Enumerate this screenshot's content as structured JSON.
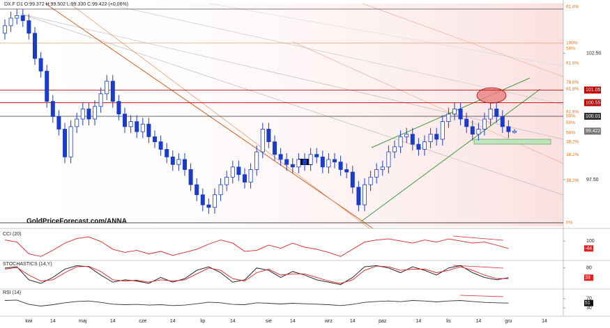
{
  "chart_data": [
    {
      "type": "candlestick",
      "title": "DX.F D1 O:99.372 H:99.502 L:99.330 C:99.422 (+0.06%)",
      "watermark": "GoldPriceForecast.com/ANNA",
      "categories": [
        null,
        null,
        null,
        null,
        "kwi",
        null,
        null,
        null,
        "14",
        null,
        null,
        null,
        null,
        "maj",
        null,
        null,
        null,
        null,
        "14",
        null,
        null,
        null,
        null,
        "cze",
        null,
        null,
        null,
        null,
        "14",
        null,
        null,
        null,
        null,
        "lip",
        null,
        null,
        null,
        null,
        "14",
        null,
        null,
        null,
        null,
        null,
        "sie",
        null,
        null,
        null,
        "14",
        null,
        null,
        null,
        null,
        null,
        "wrz",
        null,
        null,
        null,
        "14",
        null,
        null,
        null,
        null,
        "paz",
        null,
        null,
        null,
        null,
        null,
        "14",
        null,
        null,
        null,
        null,
        "lis",
        null,
        null,
        null,
        null,
        "14",
        null,
        null,
        null,
        null,
        "gru",
        null,
        null,
        null,
        null,
        null,
        "14"
      ],
      "open": [
        103.3,
        103.6,
        103.9,
        104.0,
        103.8,
        103.3,
        102.3,
        101.8,
        100.6,
        100.0,
        99.5,
        98.4,
        99.6,
        99.9,
        100.3,
        99.9,
        100.4,
        100.9,
        101.4,
        100.6,
        100.1,
        99.6,
        99.8,
        99.4,
        99.7,
        99.2,
        99.0,
        98.7,
        98.4,
        98.1,
        98.3,
        97.9,
        97.3,
        96.9,
        96.5,
        96.4,
        96.9,
        97.3,
        97.6,
        98.0,
        97.7,
        97.4,
        97.9,
        98.6,
        99.5,
        99.0,
        98.5,
        98.3,
        98.1,
        98.0,
        98.3,
        98.1,
        98.5,
        98.4,
        98.0,
        98.3,
        98.2,
        97.9,
        97.8,
        97.2,
        96.5,
        97.3,
        97.6,
        97.9,
        98.0,
        98.6,
        98.8,
        99.2,
        99.3,
        98.9,
        98.7,
        99.0,
        99.3,
        99.1,
        99.8,
        100.1,
        100.3,
        99.9,
        99.6,
        99.3,
        99.5,
        99.9,
        100.3,
        100.0,
        99.6,
        99.372,
        null,
        null,
        null,
        null,
        null
      ],
      "high": [
        103.85,
        104.15,
        104.25,
        104.25,
        104.05,
        103.55,
        102.55,
        102.05,
        100.85,
        100.25,
        99.75,
        99.85,
        100.15,
        100.55,
        100.55,
        100.65,
        101.15,
        101.65,
        101.65,
        100.85,
        100.35,
        100.05,
        100.05,
        99.95,
        99.95,
        99.45,
        99.25,
        98.95,
        98.65,
        98.55,
        98.55,
        98.15,
        97.55,
        97.15,
        96.75,
        97.15,
        97.55,
        97.85,
        98.25,
        98.25,
        97.95,
        98.15,
        98.85,
        99.75,
        99.75,
        99.25,
        98.75,
        98.55,
        98.35,
        98.55,
        98.55,
        98.75,
        98.75,
        98.65,
        98.55,
        98.55,
        98.45,
        98.15,
        98.05,
        97.45,
        97.55,
        97.85,
        98.15,
        98.25,
        98.85,
        99.05,
        99.45,
        99.55,
        99.55,
        99.15,
        99.25,
        99.55,
        99.55,
        100.05,
        100.35,
        100.55,
        100.55,
        100.15,
        99.85,
        99.75,
        100.15,
        100.55,
        100.55,
        100.25,
        99.85,
        99.502,
        null,
        null,
        null,
        null,
        null
      ],
      "low": [
        103.05,
        103.35,
        103.65,
        103.55,
        103.05,
        102.05,
        101.55,
        100.35,
        99.75,
        99.25,
        98.15,
        98.15,
        99.35,
        99.65,
        99.65,
        99.65,
        100.15,
        100.65,
        100.35,
        99.85,
        99.35,
        99.35,
        99.15,
        99.15,
        98.95,
        98.75,
        98.45,
        98.15,
        97.85,
        97.85,
        97.65,
        97.05,
        96.65,
        96.25,
        96.15,
        96.15,
        96.65,
        97.05,
        97.35,
        97.45,
        97.15,
        97.15,
        97.65,
        98.35,
        98.75,
        98.25,
        98.05,
        97.85,
        97.75,
        97.75,
        97.85,
        97.85,
        98.15,
        97.75,
        97.75,
        97.95,
        97.65,
        97.55,
        96.95,
        96.25,
        96.25,
        97.05,
        97.35,
        97.65,
        97.75,
        98.35,
        98.55,
        98.95,
        98.65,
        98.45,
        98.45,
        98.75,
        98.85,
        98.85,
        99.55,
        99.85,
        99.65,
        99.35,
        99.05,
        99.05,
        99.25,
        99.65,
        99.75,
        99.35,
        99.15,
        99.33,
        null,
        null,
        null,
        null,
        null
      ],
      "close": [
        103.6,
        103.9,
        104.0,
        103.8,
        103.3,
        102.3,
        101.8,
        100.6,
        100.0,
        99.5,
        98.4,
        99.6,
        99.9,
        100.3,
        99.9,
        100.4,
        100.9,
        101.4,
        100.6,
        100.1,
        99.6,
        99.8,
        99.4,
        99.7,
        99.2,
        99.0,
        98.7,
        98.4,
        98.1,
        98.3,
        97.9,
        97.3,
        96.9,
        96.5,
        96.4,
        96.9,
        97.3,
        97.6,
        98.0,
        97.7,
        97.4,
        97.9,
        98.6,
        99.5,
        99.0,
        98.5,
        98.3,
        98.1,
        98.0,
        98.3,
        98.1,
        98.5,
        98.4,
        98.0,
        98.3,
        98.2,
        97.9,
        97.8,
        97.2,
        96.5,
        97.3,
        97.6,
        97.9,
        98.0,
        98.6,
        98.8,
        99.2,
        99.3,
        98.9,
        98.7,
        99.0,
        99.3,
        99.1,
        99.8,
        100.1,
        100.3,
        99.9,
        99.6,
        99.3,
        99.5,
        99.9,
        100.3,
        100.0,
        99.6,
        99.4,
        99.422,
        null,
        null,
        null,
        null,
        null
      ],
      "color": "#1a3cc8",
      "last_color": "#777777",
      "ylim": [
        95.65,
        104.48
      ],
      "yticks": [
        {
          "value": 97.5,
          "label": "97.50"
        },
        {
          "value": 102.5,
          "label": "102.50"
        }
      ],
      "levels": [
        {
          "value": 104.26,
          "color": "#555555"
        },
        {
          "value": 102.91,
          "color": "#e8a070"
        },
        {
          "value": 101.05,
          "color": "#c00000",
          "tag": true
        },
        {
          "value": 100.55,
          "color": "#c00000",
          "tag": true
        },
        {
          "value": 100.01,
          "color": "#333333",
          "tag": true
        },
        {
          "value": 95.79,
          "color": "#333333"
        }
      ],
      "fib_labels": [
        {
          "value": 104.35,
          "label": "61.8%"
        },
        {
          "value": 102.91,
          "label": "100%"
        },
        {
          "value": 102.69,
          "label": "50%"
        },
        {
          "value": 102.11,
          "label": "61.8%"
        },
        {
          "value": 101.36,
          "label": "78.6%"
        },
        {
          "value": 101.09,
          "label": "61.8%"
        },
        {
          "value": 100.18,
          "label": "61.8%"
        },
        {
          "value": 100.01,
          "label": "50%"
        },
        {
          "value": 99.76,
          "label": "50%"
        },
        {
          "value": 99.35,
          "label": "50%"
        },
        {
          "value": 98.99,
          "label": "38.2%"
        },
        {
          "value": 98.49,
          "label": "38.2%"
        },
        {
          "value": 97.47,
          "label": "38.2%"
        },
        {
          "value": 95.79,
          "label": "0%"
        }
      ]
    },
    {
      "type": "line",
      "title": "CCI (20)",
      "color": "#e02020",
      "last_color": "#e02020",
      "values": [
        120,
        80,
        -150,
        -200,
        -80,
        60,
        150,
        180,
        90,
        -60,
        -120,
        -80,
        -150,
        -100,
        -180,
        -120,
        -60,
        40,
        120,
        60,
        -100,
        -80,
        20,
        -40,
        60,
        -20,
        -60,
        -120,
        -200,
        -60,
        80,
        120,
        140,
        100,
        60,
        120,
        80,
        140,
        100,
        60,
        80,
        20,
        -44
      ],
      "ylim": [
        -250,
        250
      ],
      "yticks": [
        100
      ]
    },
    {
      "type": "line",
      "title": "STOCHASTICS (14,Y)",
      "last_color": "#e02020",
      "series": [
        {
          "color": "#111111",
          "values": [
            80,
            85,
            30,
            15,
            40,
            75,
            90,
            85,
            50,
            20,
            30,
            25,
            15,
            40,
            20,
            35,
            70,
            85,
            60,
            20,
            30,
            80,
            70,
            40,
            65,
            50,
            30,
            20,
            10,
            40,
            85,
            90,
            80,
            60,
            85,
            70,
            50,
            80,
            90,
            60,
            40,
            30,
            39
          ]
        },
        {
          "color": "#e02020",
          "values": [
            75,
            82,
            50,
            25,
            30,
            60,
            85,
            87,
            65,
            30,
            25,
            28,
            20,
            30,
            25,
            30,
            55,
            80,
            70,
            35,
            25,
            60,
            75,
            50,
            55,
            55,
            40,
            25,
            15,
            30,
            70,
            88,
            85,
            70,
            75,
            75,
            60,
            70,
            85,
            70,
            50,
            35,
            35
          ]
        }
      ],
      "ylim": [
        0,
        100
      ],
      "yticks": [
        80
      ]
    },
    {
      "type": "line",
      "title": "RSI (14)",
      "color": "#333333",
      "last_color": "#111111",
      "values": [
        62,
        64,
        45,
        38,
        44,
        52,
        58,
        60,
        54,
        46,
        44,
        45,
        42,
        44,
        40,
        42,
        48,
        55,
        52,
        45,
        44,
        52,
        50,
        47,
        50,
        48,
        46,
        44,
        40,
        45,
        54,
        58,
        60,
        57,
        62,
        60,
        56,
        60,
        62,
        58,
        54,
        52,
        51
      ],
      "ylim": [
        0,
        100
      ],
      "yticks": [
        70,
        30
      ]
    }
  ]
}
